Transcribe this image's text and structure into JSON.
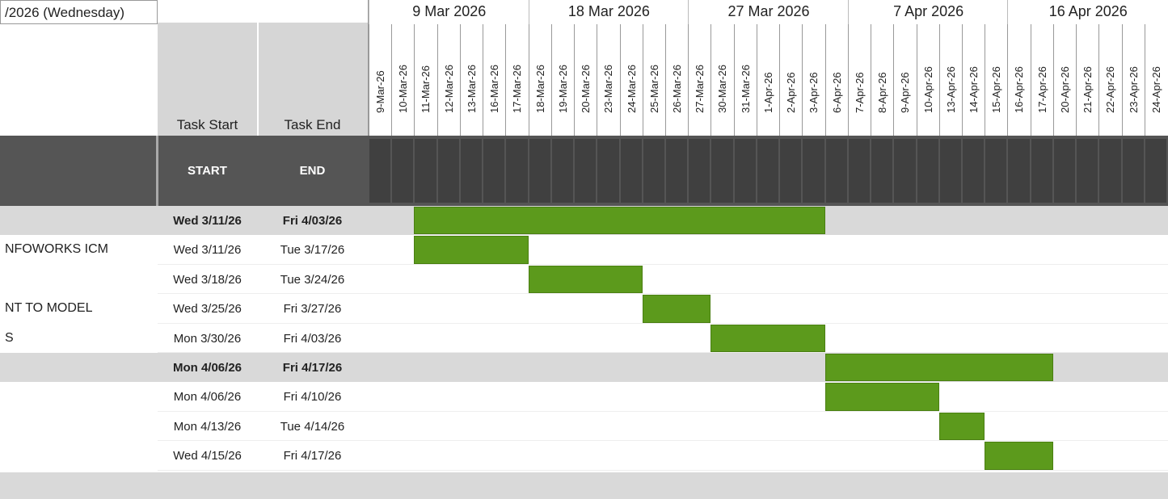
{
  "header": {
    "date_cell": "/2026 (Wednesday)",
    "task_start": "Task Start",
    "task_end": "Task End",
    "start": "START",
    "end": "END"
  },
  "months": [
    "9 Mar 2026",
    "18 Mar 2026",
    "27 Mar 2026",
    "7 Apr 2026",
    "16 Apr 2026"
  ],
  "days": [
    "9-Mar-26",
    "10-Mar-26",
    "11-Mar-26",
    "12-Mar-26",
    "13-Mar-26",
    "16-Mar-26",
    "17-Mar-26",
    "18-Mar-26",
    "19-Mar-26",
    "20-Mar-26",
    "23-Mar-26",
    "24-Mar-26",
    "25-Mar-26",
    "26-Mar-26",
    "27-Mar-26",
    "30-Mar-26",
    "31-Mar-26",
    "1-Apr-26",
    "2-Apr-26",
    "3-Apr-26",
    "6-Apr-26",
    "7-Apr-26",
    "8-Apr-26",
    "9-Apr-26",
    "10-Apr-26",
    "13-Apr-26",
    "14-Apr-26",
    "15-Apr-26",
    "16-Apr-26",
    "17-Apr-26",
    "20-Apr-26",
    "21-Apr-26",
    "22-Apr-26",
    "23-Apr-26",
    "24-Apr-26"
  ],
  "rows": [
    {
      "start": "Wed 3/11/26",
      "end": "Fri 4/03/26",
      "summary": true
    },
    {
      "name": "NFOWORKS ICM",
      "start": "Wed 3/11/26",
      "end": "Tue 3/17/26"
    },
    {
      "start": "Wed 3/18/26",
      "end": "Tue 3/24/26"
    },
    {
      "name": "NT TO MODEL",
      "start": "Wed 3/25/26",
      "end": "Fri 3/27/26"
    },
    {
      "name": "S",
      "start": "Mon 3/30/26",
      "end": "Fri 4/03/26"
    },
    {
      "start": "Mon 4/06/26",
      "end": "Fri 4/17/26",
      "summary": true
    },
    {
      "start": "Mon 4/06/26",
      "end": "Fri 4/10/26"
    },
    {
      "start": "Mon 4/13/26",
      "end": "Tue 4/14/26"
    },
    {
      "start": "Wed 4/15/26",
      "end": "Fri 4/17/26"
    }
  ]
}
